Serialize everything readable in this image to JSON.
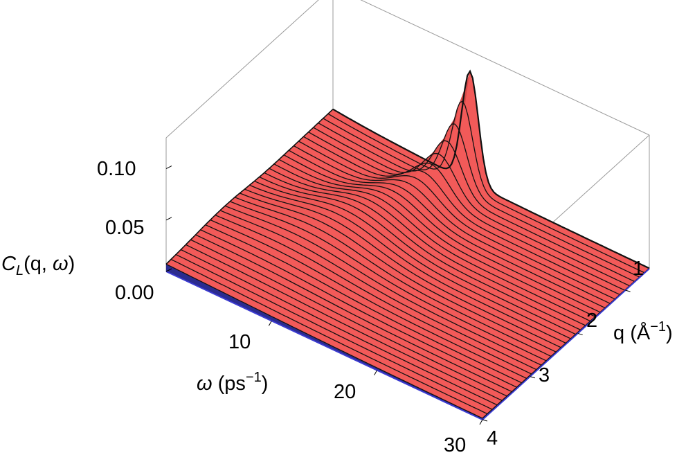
{
  "chart_data": {
    "type": "surface3d",
    "title": "",
    "z_axis": {
      "label_main": "C",
      "label_sub": "L",
      "label_args": "(q, ",
      "label_omega": "ω",
      "label_close": ")",
      "ticks": [
        "0.00",
        "0.05",
        "0.10"
      ],
      "tick_values": [
        0.0,
        0.05,
        0.1
      ],
      "range": [
        0,
        0.13
      ]
    },
    "x_axis": {
      "label_symbol": "ω",
      "label_unit": " (ps",
      "label_exp": "−1",
      "label_close": ")",
      "ticks": [
        "10",
        "20",
        "30"
      ],
      "tick_values": [
        10,
        20,
        30
      ],
      "range": [
        0,
        30
      ]
    },
    "y_axis": {
      "label_symbol": "q",
      "label_unit": " (Å",
      "label_exp": "−1",
      "label_close": ")",
      "ticks": [
        "1",
        "2",
        "3",
        "4"
      ],
      "tick_values": [
        1,
        2,
        3,
        4
      ],
      "range": [
        0.5,
        4
      ]
    },
    "peak": {
      "q": 0.5,
      "omega": 13,
      "value": 0.105
    },
    "colors": {
      "surface": "#f25a59",
      "surface_shade": "#8a2020",
      "base": "#2b2b8f",
      "box": "#9a9a9a"
    }
  }
}
